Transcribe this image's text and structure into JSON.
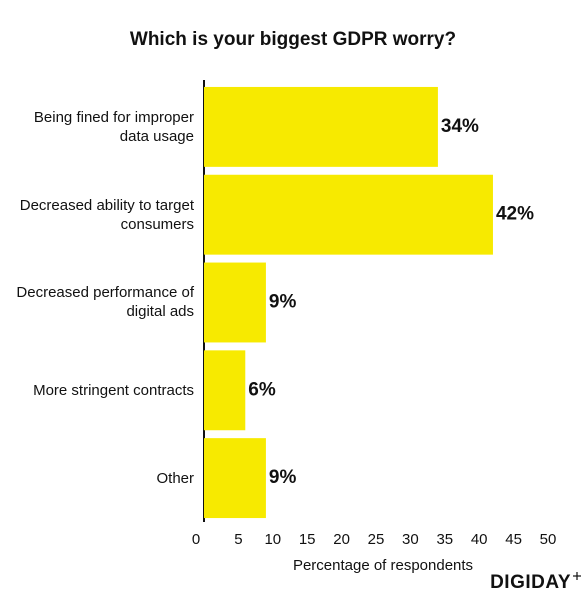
{
  "chart_data": {
    "type": "barh",
    "title": "Which is your biggest GDPR worry?",
    "categories": [
      "Being fined for improper data usage",
      "Decreased ability to target consumers",
      "Decreased performance of digital ads",
      "More stringent contracts",
      "Other"
    ],
    "values": [
      34,
      42,
      9,
      6,
      9
    ],
    "value_labels": [
      "34%",
      "42%",
      "9%",
      "6%",
      "9%"
    ],
    "color": "#f7ea00",
    "xlim": [
      0,
      50
    ],
    "xticks": [
      0,
      5,
      10,
      15,
      20,
      25,
      30,
      35,
      40,
      45,
      50
    ],
    "xlabel": "Percentage of respondents",
    "brand": "DIGIDAY"
  }
}
